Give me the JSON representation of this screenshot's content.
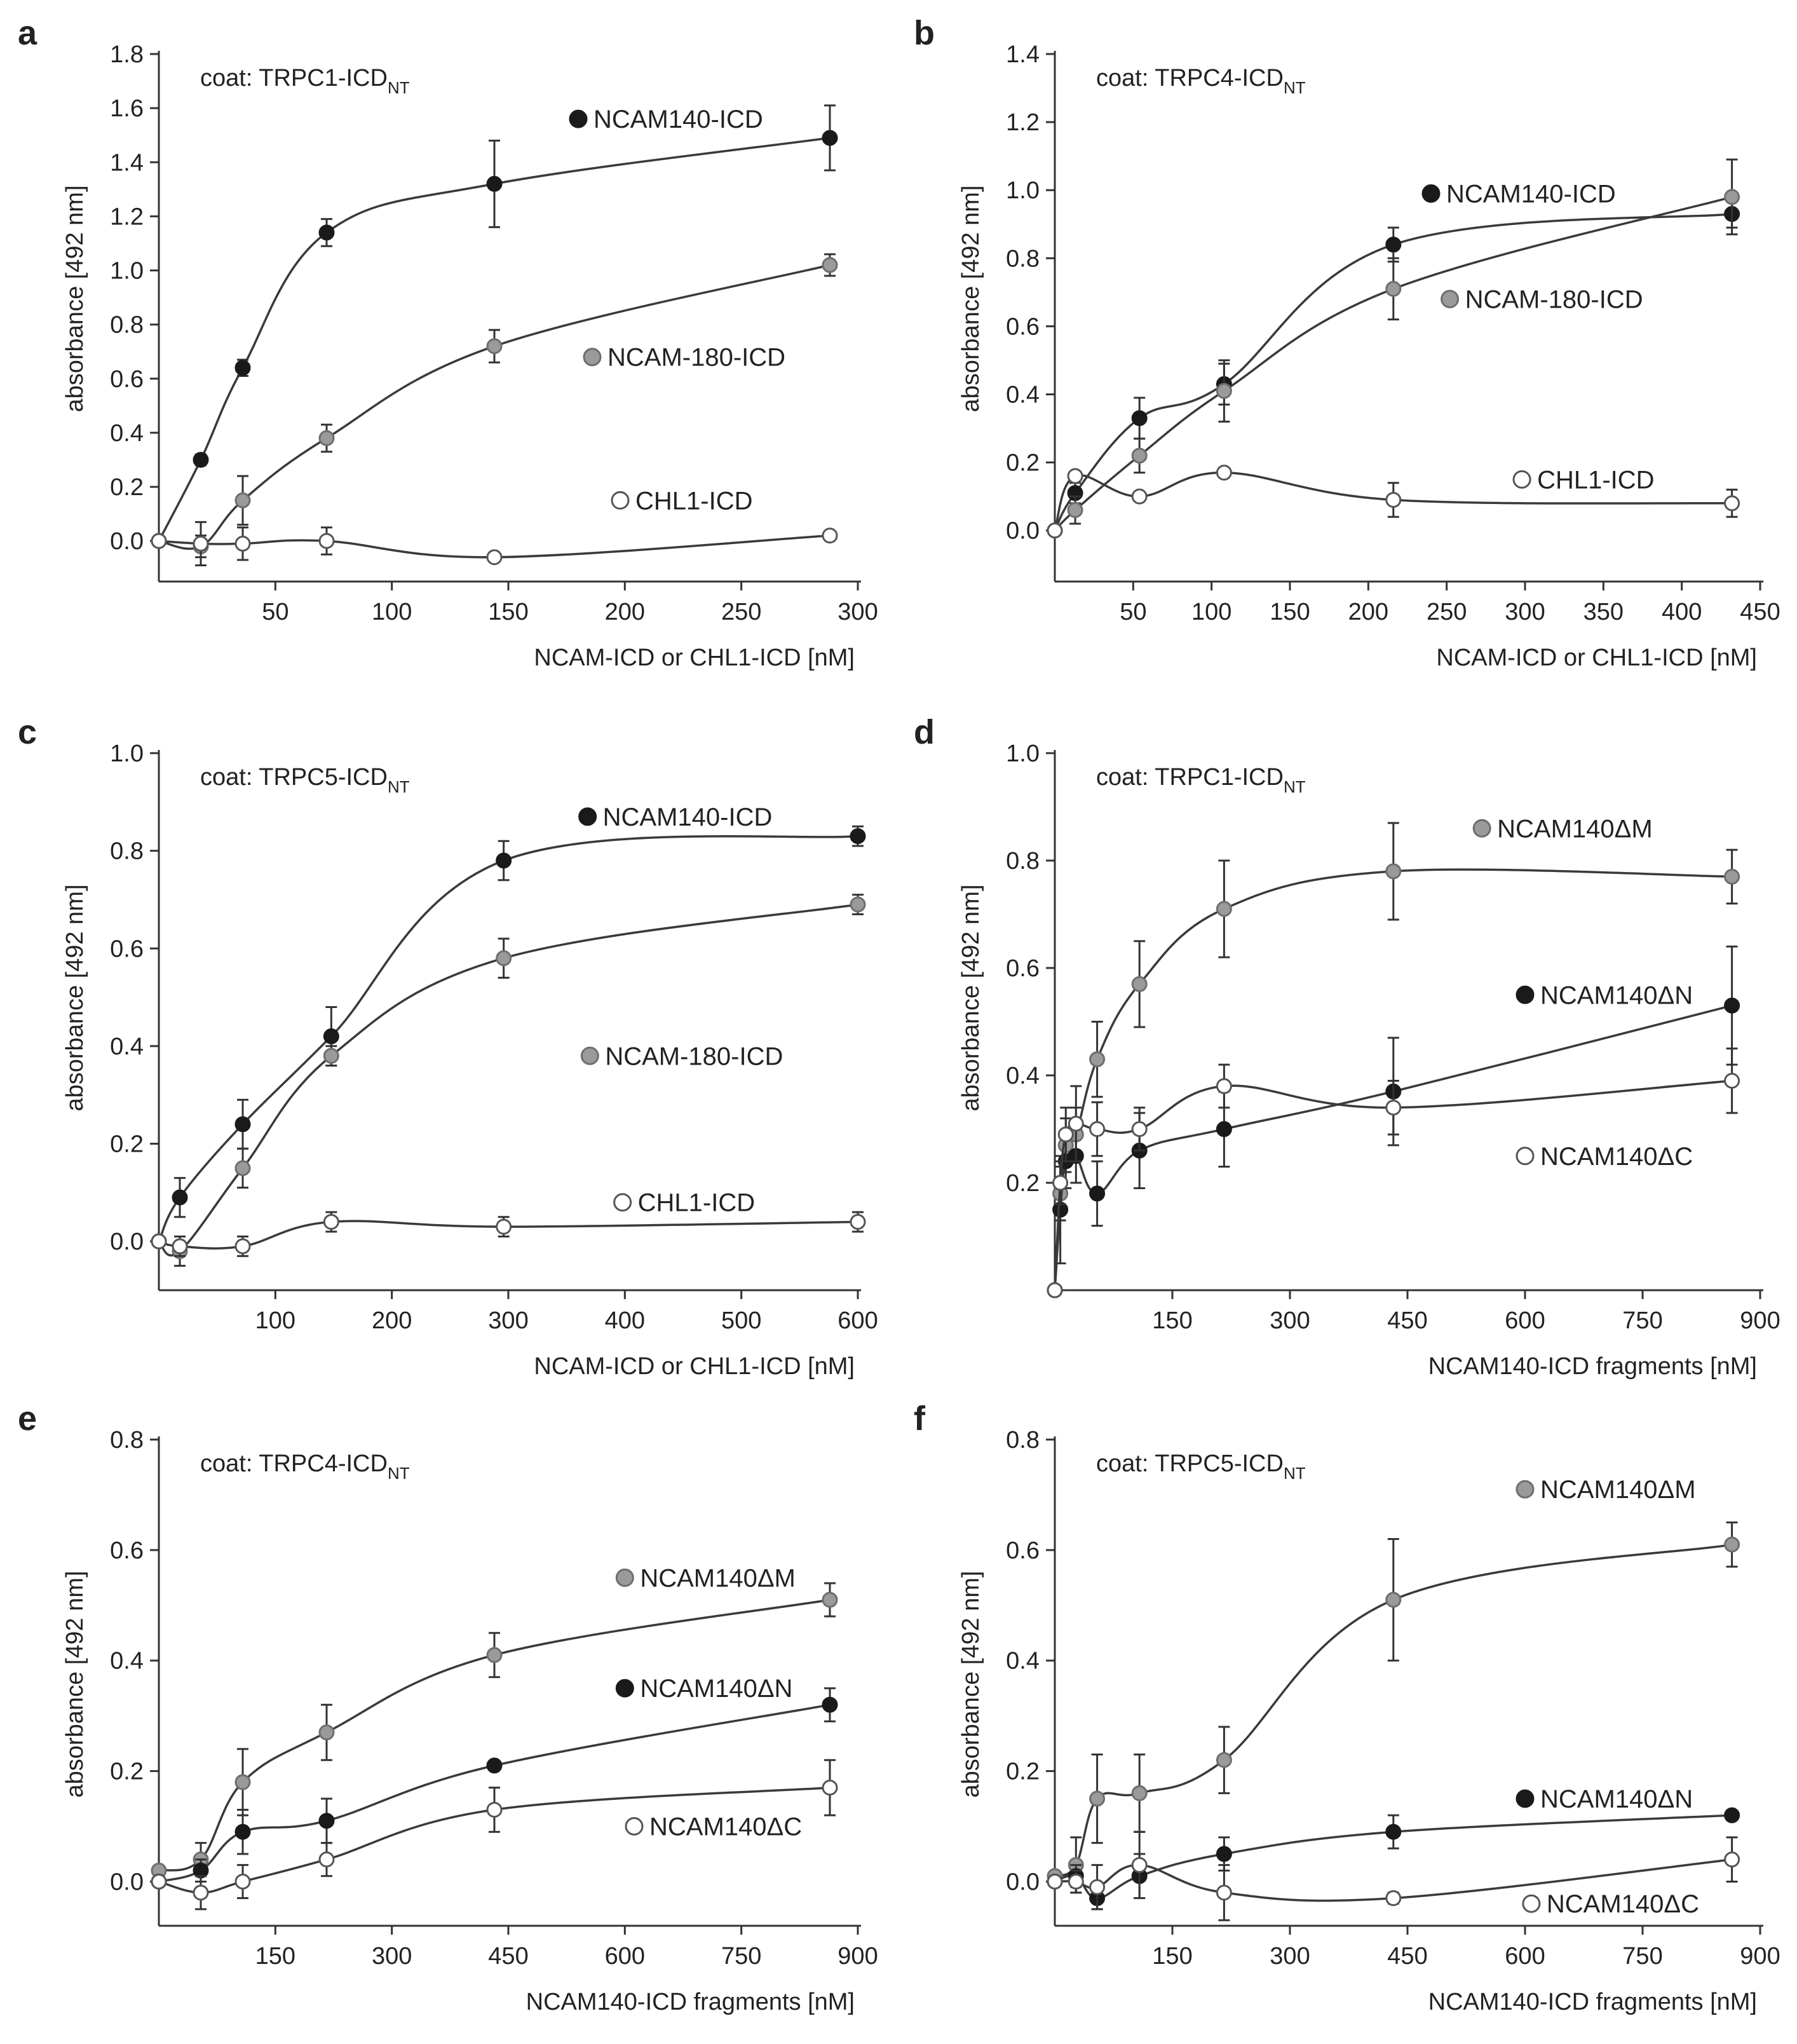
{
  "figure": {
    "colors": {
      "black_series": "#1a1a1a",
      "gray_series": "#9a9a9a",
      "white_series": "#ffffff",
      "axis": "#333333",
      "text": "#222222"
    }
  },
  "chart_data": [
    {
      "panel_letter": "a",
      "type": "line",
      "coat_prefix": "coat: TRPC1-ICD",
      "coat_subscript": "NT",
      "xlabel": "NCAM-ICD or CHL1-ICD [nM]",
      "ylabel": "absorbance [492 nm]",
      "xlim": [
        0,
        300
      ],
      "ylim": [
        -0.15,
        1.8
      ],
      "xticks": [
        50,
        100,
        150,
        200,
        250,
        300
      ],
      "yticks": [
        0.0,
        0.2,
        0.4,
        0.6,
        0.8,
        1.0,
        1.2,
        1.4,
        1.6,
        1.8
      ],
      "ytick_decimals": 1,
      "series": [
        {
          "name": "NCAM140-ICD",
          "style": "black",
          "label_pos": [
            180,
            1.56
          ],
          "x": [
            0,
            18,
            36,
            72,
            144,
            288
          ],
          "y": [
            0.0,
            0.3,
            0.64,
            1.14,
            1.32,
            1.49
          ],
          "err": [
            0.0,
            0.02,
            0.03,
            0.05,
            0.16,
            0.12
          ]
        },
        {
          "name": "NCAM-180-ICD",
          "style": "gray",
          "label_pos": [
            186,
            0.68
          ],
          "x": [
            0,
            18,
            36,
            72,
            144,
            288
          ],
          "y": [
            0.0,
            -0.02,
            0.15,
            0.38,
            0.72,
            1.02
          ],
          "err": [
            0.0,
            0.04,
            0.09,
            0.05,
            0.06,
            0.04
          ]
        },
        {
          "name": "CHL1-ICD",
          "style": "white",
          "label_pos": [
            198,
            0.15
          ],
          "x": [
            0,
            18,
            36,
            72,
            144,
            288
          ],
          "y": [
            0.0,
            -0.01,
            -0.01,
            0.0,
            -0.06,
            0.02
          ],
          "err": [
            0.0,
            0.08,
            0.06,
            0.05,
            0.0,
            0.0
          ]
        }
      ]
    },
    {
      "panel_letter": "b",
      "type": "line",
      "coat_prefix": "coat: TRPC4-ICD",
      "coat_subscript": "NT",
      "xlabel": "NCAM-ICD or CHL1-ICD [nM]",
      "ylabel": "absorbance [492 nm]",
      "xlim": [
        0,
        450
      ],
      "ylim": [
        -0.15,
        1.4
      ],
      "xticks": [
        50,
        100,
        150,
        200,
        250,
        300,
        350,
        400,
        450
      ],
      "yticks": [
        0.0,
        0.2,
        0.4,
        0.6,
        0.8,
        1.0,
        1.2,
        1.4
      ],
      "ytick_decimals": 1,
      "series": [
        {
          "name": "NCAM140-ICD",
          "style": "black",
          "label_pos": [
            240,
            0.99
          ],
          "x": [
            0,
            13,
            54,
            108,
            216,
            432
          ],
          "y": [
            0.0,
            0.11,
            0.33,
            0.43,
            0.84,
            0.93
          ],
          "err": [
            0.0,
            0.03,
            0.06,
            0.06,
            0.05,
            0.04
          ]
        },
        {
          "name": "NCAM-180-ICD",
          "style": "gray",
          "label_pos": [
            252,
            0.68
          ],
          "x": [
            0,
            13,
            54,
            108,
            216,
            432
          ],
          "y": [
            0.0,
            0.06,
            0.22,
            0.41,
            0.71,
            0.98
          ],
          "err": [
            0.0,
            0.04,
            0.05,
            0.09,
            0.09,
            0.11
          ]
        },
        {
          "name": "CHL1-ICD",
          "style": "white",
          "label_pos": [
            298,
            0.15
          ],
          "x": [
            0,
            13,
            54,
            108,
            216,
            432
          ],
          "y": [
            0.0,
            0.16,
            0.1,
            0.17,
            0.09,
            0.08
          ],
          "err": [
            0.0,
            0.0,
            0.0,
            0.0,
            0.05,
            0.04
          ]
        }
      ]
    },
    {
      "panel_letter": "c",
      "type": "line",
      "coat_prefix": "coat: TRPC5-ICD",
      "coat_subscript": "NT",
      "xlabel": "NCAM-ICD or CHL1-ICD [nM]",
      "ylabel": "absorbance [492 nm]",
      "xlim": [
        0,
        600
      ],
      "ylim": [
        -0.1,
        1.0
      ],
      "xticks": [
        100,
        200,
        300,
        400,
        500,
        600
      ],
      "yticks": [
        0.0,
        0.2,
        0.4,
        0.6,
        0.8,
        1.0
      ],
      "ytick_decimals": 1,
      "series": [
        {
          "name": "NCAM140-ICD",
          "style": "black",
          "label_pos": [
            368,
            0.87
          ],
          "x": [
            0,
            18,
            72,
            148,
            296,
            600
          ],
          "y": [
            0.0,
            0.09,
            0.24,
            0.42,
            0.78,
            0.83
          ],
          "err": [
            0.0,
            0.04,
            0.05,
            0.06,
            0.04,
            0.02
          ]
        },
        {
          "name": "NCAM-180-ICD",
          "style": "gray",
          "label_pos": [
            370,
            0.38
          ],
          "x": [
            0,
            18,
            72,
            148,
            296,
            600
          ],
          "y": [
            0.0,
            -0.02,
            0.15,
            0.38,
            0.58,
            0.69
          ],
          "err": [
            0.0,
            0.03,
            0.04,
            0.02,
            0.04,
            0.02
          ]
        },
        {
          "name": "CHL1-ICD",
          "style": "white",
          "label_pos": [
            398,
            0.08
          ],
          "x": [
            0,
            18,
            72,
            148,
            296,
            600
          ],
          "y": [
            0.0,
            -0.01,
            -0.01,
            0.04,
            0.03,
            0.04
          ],
          "err": [
            0.0,
            0.02,
            0.02,
            0.02,
            0.02,
            0.02
          ]
        }
      ]
    },
    {
      "panel_letter": "d",
      "type": "line",
      "coat_prefix": "coat: TRPC1-ICD",
      "coat_subscript": "NT",
      "xlabel": "NCAM140-ICD fragments [nM]",
      "ylabel": "absorbance [492 nm]",
      "xlim": [
        0,
        900
      ],
      "ylim": [
        0.0,
        1.0
      ],
      "xticks": [
        150,
        300,
        450,
        600,
        750,
        900
      ],
      "yticks": [
        0.2,
        0.4,
        0.6,
        0.8,
        1.0
      ],
      "ytick_decimals": 1,
      "series": [
        {
          "name": "NCAM140ΔM",
          "style": "gray",
          "label_pos": [
            545,
            0.86
          ],
          "x": [
            0,
            7,
            14,
            27,
            54,
            108,
            216,
            432,
            864
          ],
          "y": [
            0.0,
            0.18,
            0.27,
            0.29,
            0.43,
            0.57,
            0.71,
            0.78,
            0.77
          ],
          "err": [
            0.0,
            0.05,
            0.05,
            0.05,
            0.07,
            0.08,
            0.09,
            0.09,
            0.05
          ]
        },
        {
          "name": "NCAM140ΔN",
          "style": "black",
          "label_pos": [
            600,
            0.55
          ],
          "x": [
            0,
            7,
            14,
            27,
            54,
            108,
            216,
            432,
            864
          ],
          "y": [
            0.0,
            0.15,
            0.24,
            0.25,
            0.18,
            0.26,
            0.3,
            0.37,
            0.53
          ],
          "err": [
            0.0,
            0.1,
            0.05,
            0.05,
            0.06,
            0.07,
            0.07,
            0.1,
            0.11
          ]
        },
        {
          "name": "NCAM140ΔC",
          "style": "white",
          "label_pos": [
            600,
            0.25
          ],
          "x": [
            0,
            7,
            14,
            27,
            54,
            108,
            216,
            432,
            864
          ],
          "y": [
            0.0,
            0.2,
            0.29,
            0.31,
            0.3,
            0.3,
            0.38,
            0.34,
            0.39
          ],
          "err": [
            0.0,
            0.04,
            0.05,
            0.07,
            0.05,
            0.04,
            0.04,
            0.05,
            0.06
          ]
        }
      ]
    },
    {
      "panel_letter": "e",
      "type": "line",
      "coat_prefix": "coat: TRPC4-ICD",
      "coat_subscript": "NT",
      "xlabel": "NCAM140-ICD fragments [nM]",
      "ylabel": "absorbance [492 nm]",
      "xlim": [
        0,
        900
      ],
      "ylim": [
        -0.08,
        0.8
      ],
      "xticks": [
        150,
        300,
        450,
        600,
        750,
        900
      ],
      "yticks": [
        0.0,
        0.2,
        0.4,
        0.6,
        0.8
      ],
      "ytick_decimals": 1,
      "series": [
        {
          "name": "NCAM140ΔM",
          "style": "gray",
          "label_pos": [
            600,
            0.55
          ],
          "x": [
            0,
            54,
            108,
            216,
            432,
            864
          ],
          "y": [
            0.02,
            0.04,
            0.18,
            0.27,
            0.41,
            0.51
          ],
          "err": [
            0.0,
            0.03,
            0.06,
            0.05,
            0.04,
            0.03
          ]
        },
        {
          "name": "NCAM140ΔN",
          "style": "black",
          "label_pos": [
            600,
            0.35
          ],
          "x": [
            0,
            54,
            108,
            216,
            432,
            864
          ],
          "y": [
            0.0,
            0.02,
            0.09,
            0.11,
            0.21,
            0.32
          ],
          "err": [
            0.0,
            0.02,
            0.04,
            0.04,
            0.0,
            0.03
          ]
        },
        {
          "name": "NCAM140ΔC",
          "style": "white",
          "label_pos": [
            612,
            0.1
          ],
          "x": [
            0,
            54,
            108,
            216,
            432,
            864
          ],
          "y": [
            0.0,
            -0.02,
            0.0,
            0.04,
            0.13,
            0.17
          ],
          "err": [
            0.0,
            0.03,
            0.03,
            0.03,
            0.04,
            0.05
          ]
        }
      ]
    },
    {
      "panel_letter": "f",
      "type": "line",
      "coat_prefix": "coat: TRPC5-ICD",
      "coat_subscript": "NT",
      "xlabel": "NCAM140-ICD fragments [nM]",
      "ylabel": "absorbance [492 nm]",
      "xlim": [
        0,
        900
      ],
      "ylim": [
        -0.08,
        0.8
      ],
      "xticks": [
        150,
        300,
        450,
        600,
        750,
        900
      ],
      "yticks": [
        0.0,
        0.2,
        0.4,
        0.6,
        0.8
      ],
      "ytick_decimals": 1,
      "series": [
        {
          "name": "NCAM140ΔM",
          "style": "gray",
          "label_pos": [
            600,
            0.71
          ],
          "x": [
            0,
            27,
            54,
            108,
            216,
            432,
            864
          ],
          "y": [
            0.01,
            0.03,
            0.15,
            0.16,
            0.22,
            0.51,
            0.61
          ],
          "err": [
            0.0,
            0.05,
            0.08,
            0.07,
            0.06,
            0.11,
            0.04
          ]
        },
        {
          "name": "NCAM140ΔN",
          "style": "black",
          "label_pos": [
            600,
            0.15
          ],
          "x": [
            0,
            27,
            54,
            108,
            216,
            432,
            864
          ],
          "y": [
            0.0,
            0.01,
            -0.03,
            0.01,
            0.05,
            0.09,
            0.12
          ],
          "err": [
            0.0,
            0.02,
            0.02,
            0.04,
            0.03,
            0.03,
            0.0
          ]
        },
        {
          "name": "NCAM140ΔC",
          "style": "white",
          "label_pos": [
            608,
            -0.04
          ],
          "x": [
            0,
            27,
            54,
            108,
            216,
            432,
            864
          ],
          "y": [
            0.0,
            0.0,
            -0.01,
            0.03,
            -0.02,
            -0.03,
            0.04
          ],
          "err": [
            0.0,
            0.02,
            0.04,
            0.06,
            0.05,
            0.01,
            0.04
          ]
        }
      ]
    }
  ]
}
